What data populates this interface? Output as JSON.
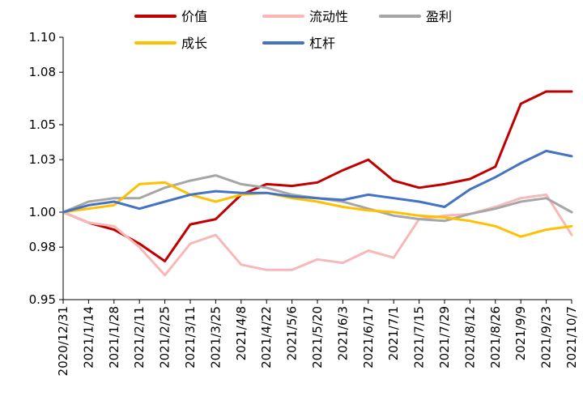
{
  "chart_data": {
    "type": "line",
    "title": "",
    "xlabel": "",
    "ylabel": "",
    "ylim": [
      0.95,
      1.1
    ],
    "y_ticks": [
      "0.95",
      "0.98",
      "1.00",
      "1.03",
      "1.05",
      "1.08",
      "1.10"
    ],
    "grid": false,
    "legend_position": "top",
    "x_tick_labels": [
      "2020/12/31",
      "2021/1/14",
      "2021/1/28",
      "2021/2/11",
      "2021/2/25",
      "2021/3/11",
      "2021/3/25",
      "2021/4/8",
      "2021/4/22",
      "2021/5/6",
      "2021/5/20",
      "2021/6/3",
      "2021/6/17",
      "2021/7/1",
      "2021/7/15",
      "2021/7/29",
      "2021/8/12",
      "2021/8/26",
      "2021/9/9",
      "2021/9/23",
      "2021/10/7"
    ],
    "series": [
      {
        "name": "价值",
        "color": "#C00000",
        "values": [
          1.0,
          0.994,
          0.99,
          0.982,
          0.972,
          0.993,
          0.996,
          1.01,
          1.016,
          1.015,
          1.017,
          1.024,
          1.03,
          1.018,
          1.014,
          1.016,
          1.019,
          1.026,
          1.062,
          1.069,
          1.069
        ]
      },
      {
        "name": "流动性",
        "color": "#F8B8B8",
        "values": [
          1.0,
          0.994,
          0.992,
          0.98,
          0.964,
          0.982,
          0.987,
          0.97,
          0.967,
          0.967,
          0.973,
          0.971,
          0.978,
          0.974,
          0.996,
          0.998,
          0.999,
          1.003,
          1.008,
          1.01,
          0.987
        ]
      },
      {
        "name": "盈利",
        "color": "#A6A6A6",
        "values": [
          1.0,
          1.006,
          1.008,
          1.008,
          1.014,
          1.018,
          1.021,
          1.016,
          1.014,
          1.01,
          1.008,
          1.006,
          1.002,
          0.998,
          0.996,
          0.995,
          0.999,
          1.002,
          1.006,
          1.008,
          1.0
        ]
      },
      {
        "name": "成长",
        "color": "#FFC000",
        "values": [
          1.0,
          1.002,
          1.004,
          1.016,
          1.017,
          1.01,
          1.006,
          1.01,
          1.011,
          1.008,
          1.006,
          1.003,
          1.001,
          1.0,
          0.998,
          0.997,
          0.995,
          0.992,
          0.986,
          0.99,
          0.992
        ]
      },
      {
        "name": "杠杆",
        "color": "#4472C4",
        "values": [
          1.0,
          1.004,
          1.006,
          1.002,
          1.006,
          1.01,
          1.012,
          1.011,
          1.011,
          1.009,
          1.008,
          1.007,
          1.01,
          1.008,
          1.006,
          1.003,
          1.013,
          1.02,
          1.028,
          1.035,
          1.032
        ]
      }
    ]
  }
}
